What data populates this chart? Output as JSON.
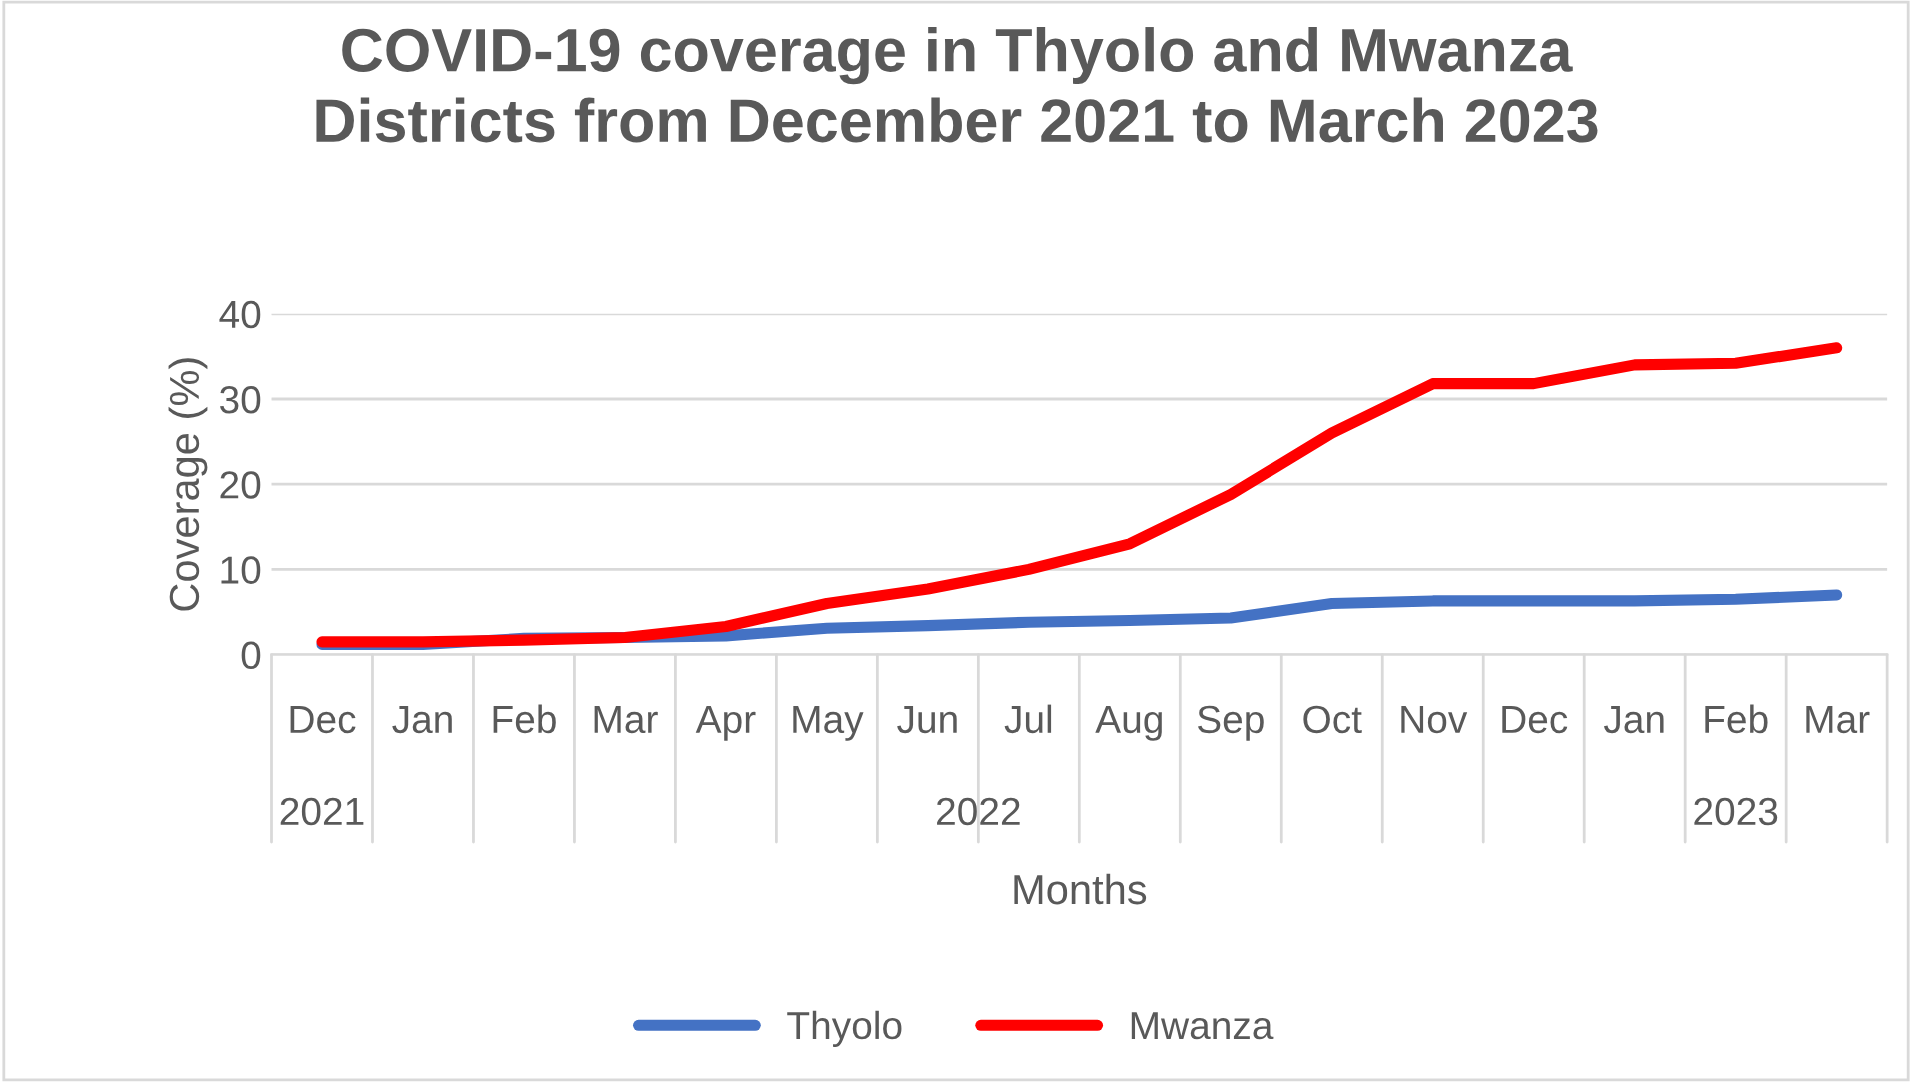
{
  "chart_data": {
    "type": "line",
    "title": "COVID-19 coverage in Thyolo and Mwanza\nDistricts from December 2021 to March 2023",
    "xlabel": "Months",
    "ylabel": "Coverage (%)",
    "categories": [
      "Dec",
      "Jan",
      "Feb",
      "Mar",
      "Apr",
      "May",
      "Jun",
      "Jul",
      "Aug",
      "Sep",
      "Oct",
      "Nov",
      "Dec",
      "Jan",
      "Feb",
      "Mar"
    ],
    "series": [
      {
        "name": "Thyolo",
        "color": "#4472c4",
        "values": [
          1.2,
          1.2,
          1.9,
          2.0,
          2.2,
          3.1,
          3.4,
          3.8,
          4.0,
          4.3,
          6.0,
          6.3,
          6.3,
          6.3,
          6.5,
          7.0
        ]
      },
      {
        "name": "Mwanza",
        "color": "#ff0000",
        "values": [
          1.5,
          1.5,
          1.7,
          2.0,
          3.3,
          6.0,
          7.7,
          10.0,
          13.0,
          18.8,
          26.0,
          31.8,
          31.8,
          34.0,
          34.2,
          36.0
        ]
      }
    ],
    "annotations": [
      "2021",
      "2022",
      "2023"
    ],
    "ylim": [
      0,
      40
    ],
    "yticks": [
      0,
      10,
      20,
      30,
      40
    ],
    "grid": "y",
    "legend": "bottom",
    "marker": "none",
    "line_style": "solid"
  }
}
